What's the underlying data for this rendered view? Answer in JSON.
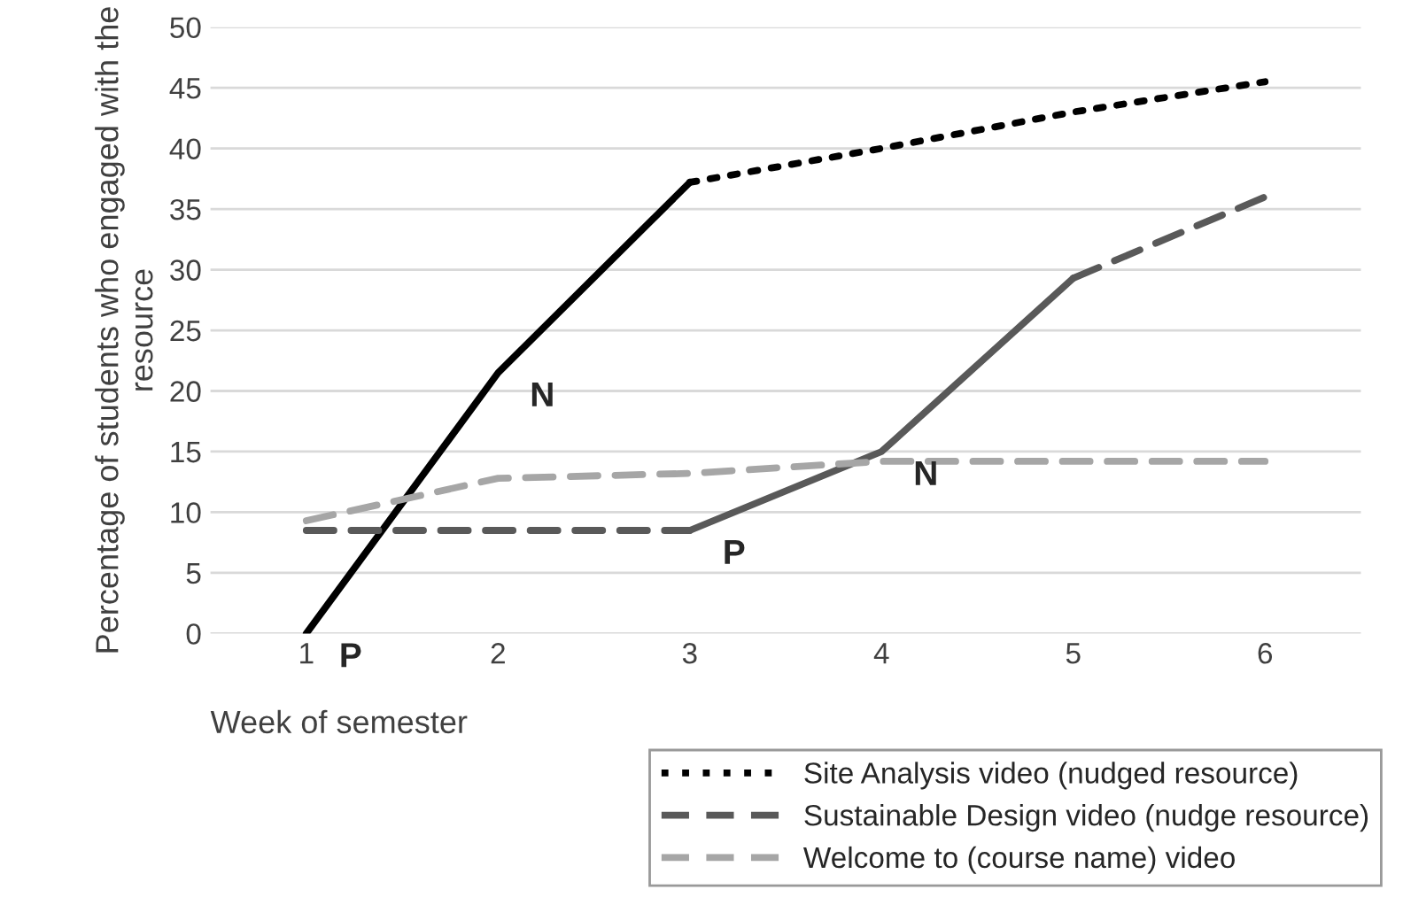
{
  "chart_data": {
    "type": "line",
    "ylabel": "Percentage of students who engaged with the resource",
    "xlabel": "Week of semester",
    "xlim": [
      0.5,
      6.5
    ],
    "xticks": [
      1,
      2,
      3,
      4,
      5,
      6
    ],
    "ylim": [
      0,
      50
    ],
    "yticks": [
      0,
      5,
      10,
      15,
      20,
      25,
      30,
      35,
      40,
      45,
      50
    ],
    "grid": "y",
    "legend": "bottom right",
    "series": [
      {
        "color": "#000000",
        "line_style": "solid",
        "x": [
          1,
          2,
          3
        ],
        "values": [
          0,
          21.5,
          37.2
        ]
      },
      {
        "name": "Site Analysis video (nudged resource)",
        "color": "#000000",
        "line_style": "dotted",
        "x": [
          3,
          4,
          5,
          6
        ],
        "values": [
          37.2,
          40,
          43,
          45.5
        ]
      },
      {
        "name": "Sustainable Design video (nudge resource)",
        "color": "#595959",
        "line_style": "dashed",
        "x": [
          1,
          2,
          3
        ],
        "values": [
          8.5,
          8.5,
          8.5
        ]
      },
      {
        "color": "#595959",
        "line_style": "solid",
        "x": [
          3,
          4,
          5
        ],
        "values": [
          8.5,
          15,
          29.3
        ]
      },
      {
        "color": "#595959",
        "line_style": "dashed",
        "x": [
          5,
          6
        ],
        "values": [
          29.3,
          36
        ]
      },
      {
        "name": "Welcome to (course name) video",
        "color": "#a6a6a6",
        "line_style": "dashed",
        "x": [
          1,
          2,
          3,
          4,
          5,
          6
        ],
        "values": [
          9.3,
          12.8,
          13.2,
          14.2,
          14.2,
          14.2
        ]
      }
    ],
    "annotations": [
      {
        "text": "P",
        "x": 1,
        "y": 0
      },
      {
        "text": "N",
        "x": 2,
        "y": 21.5
      },
      {
        "text": "P",
        "x": 3,
        "y": 8.5
      },
      {
        "text": "N",
        "x": 4,
        "y": 15
      }
    ]
  }
}
